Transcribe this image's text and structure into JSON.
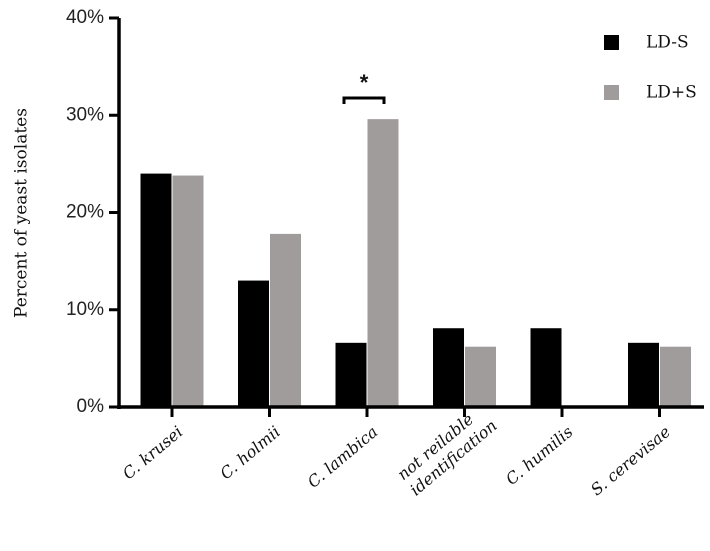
{
  "chart_data": {
    "type": "bar",
    "title": "",
    "xlabel": "",
    "ylabel": "Percent of yeast isolates",
    "ylim": [
      0,
      40
    ],
    "yticks": [
      "0%",
      "10%",
      "20%",
      "30%",
      "40%"
    ],
    "grid": false,
    "legend_position": "top-right",
    "categories": [
      "C. krusei",
      "C. holmii",
      "C. lambica",
      "not reilable identification",
      "C. humilis",
      "S. cerevisae"
    ],
    "category_lines": [
      [
        "C. krusei"
      ],
      [
        "C. holmii"
      ],
      [
        "C. lambica"
      ],
      [
        "not reilable",
        "identification"
      ],
      [
        "C. humilis"
      ],
      [
        "S. cerevisae"
      ]
    ],
    "series": [
      {
        "name": "LD-S",
        "color": "#000000",
        "values": [
          24.0,
          13.0,
          6.6,
          8.1,
          8.1,
          6.6
        ]
      },
      {
        "name": "LD+S",
        "color": "#a09c9b",
        "values": [
          23.8,
          17.8,
          29.6,
          6.2,
          0,
          6.2
        ]
      }
    ],
    "annotations": [
      {
        "text": "*",
        "category": "C. lambica",
        "type": "significance-bracket"
      }
    ]
  }
}
